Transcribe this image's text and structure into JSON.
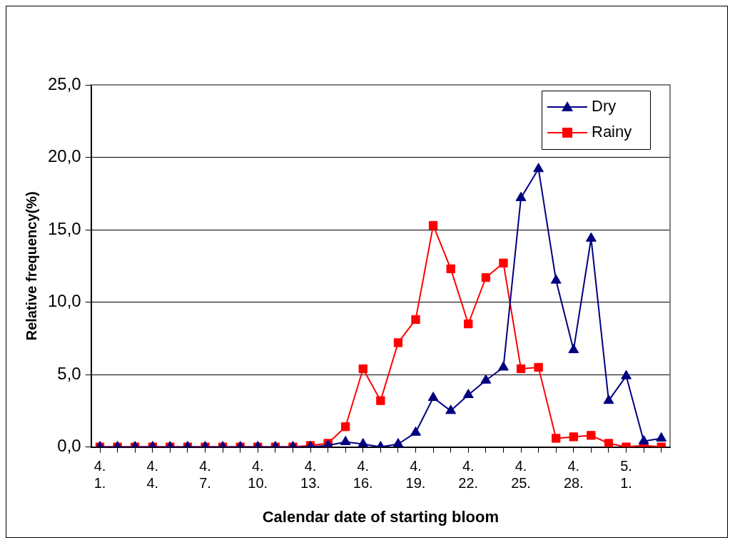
{
  "chart_data": {
    "type": "line",
    "xlabel": "Calendar date of starting bloom",
    "ylabel": "Relative frequency(%)",
    "categories": [
      "4.\n1.",
      null,
      null,
      "4.\n4.",
      null,
      null,
      "4.\n7.",
      null,
      null,
      "4.\n10.",
      null,
      null,
      "4.\n13.",
      null,
      null,
      "4.\n16.",
      null,
      null,
      "4.\n19.",
      null,
      null,
      "4.\n22.",
      null,
      null,
      "4.\n25.",
      null,
      null,
      "4.\n28.",
      null,
      null,
      "5.\n1.",
      null,
      null
    ],
    "series": [
      {
        "name": "Dry",
        "color": "#000080",
        "marker": "triangle",
        "values": [
          0,
          0,
          0,
          0,
          0,
          0,
          0,
          0,
          0,
          0,
          0,
          0,
          0,
          0.1,
          0.35,
          0.2,
          0,
          0.2,
          1.0,
          3.4,
          2.5,
          3.6,
          4.6,
          5.5,
          17.2,
          19.2,
          11.5,
          6.7,
          14.4,
          3.2,
          4.9,
          0.4,
          0.6
        ]
      },
      {
        "name": "Rainy",
        "color": "#ff0000",
        "marker": "square",
        "values": [
          0,
          0,
          0,
          0,
          0,
          0,
          0,
          0,
          0,
          0,
          0,
          0,
          0.1,
          0.25,
          1.4,
          5.4,
          3.2,
          7.2,
          8.8,
          15.3,
          12.3,
          8.5,
          11.7,
          12.7,
          5.4,
          5.5,
          0.6,
          0.7,
          0.8,
          0.25,
          0,
          0.1,
          0
        ]
      }
    ],
    "ylim": [
      0,
      25
    ],
    "yticks": [
      {
        "value": 0,
        "label": "0,0"
      },
      {
        "value": 5,
        "label": "5,0"
      },
      {
        "value": 10,
        "label": "10,0"
      },
      {
        "value": 15,
        "label": "15,0"
      },
      {
        "value": 20,
        "label": "20,0"
      },
      {
        "value": 25,
        "label": "25,0"
      }
    ],
    "grid": "y",
    "legend": "top right",
    "line_style": "solid"
  }
}
